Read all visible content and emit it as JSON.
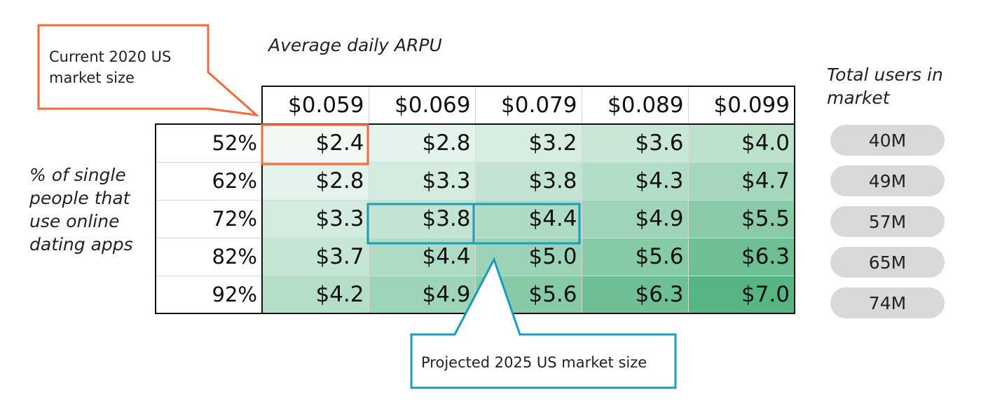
{
  "chart_data": {
    "type": "heatmap",
    "title": "",
    "xlabel": "Average daily ARPU",
    "ylabel": "% of single people that use online dating apps",
    "x": [
      "$0.059",
      "$0.069",
      "$0.079",
      "$0.089",
      "$0.099"
    ],
    "y": [
      "52%",
      "62%",
      "72%",
      "82%",
      "92%"
    ],
    "cell_labels": [
      [
        "$2.4",
        "$2.8",
        "$3.2",
        "$3.6",
        "$4.0"
      ],
      [
        "$2.8",
        "$3.3",
        "$3.8",
        "$4.3",
        "$4.7"
      ],
      [
        "$3.3",
        "$3.8",
        "$4.4",
        "$4.9",
        "$5.5"
      ],
      [
        "$3.7",
        "$4.4",
        "$5.0",
        "$5.6",
        "$6.3"
      ],
      [
        "$4.2",
        "$4.9",
        "$5.6",
        "$6.3",
        "$7.0"
      ]
    ],
    "values": [
      [
        2.4,
        2.8,
        3.2,
        3.6,
        4.0
      ],
      [
        2.8,
        3.3,
        3.8,
        4.3,
        4.7
      ],
      [
        3.3,
        3.8,
        4.4,
        4.9,
        5.5
      ],
      [
        3.7,
        4.4,
        5.0,
        5.6,
        6.3
      ],
      [
        4.2,
        4.9,
        5.6,
        6.3,
        7.0
      ]
    ],
    "color_low": "#ffffff",
    "color_high": "#57b583",
    "side_label": "Total users in market",
    "side_values": [
      "40M",
      "49M",
      "57M",
      "65M",
      "74M"
    ],
    "annotations": [
      {
        "text": "Current 2020 US market size",
        "color": "#f26a3e",
        "highlight": [
          [
            0,
            0
          ]
        ]
      },
      {
        "text": "Projected 2025 US market size",
        "color": "#1a9dbb",
        "highlight": [
          [
            2,
            1
          ],
          [
            2,
            2
          ]
        ]
      }
    ]
  }
}
